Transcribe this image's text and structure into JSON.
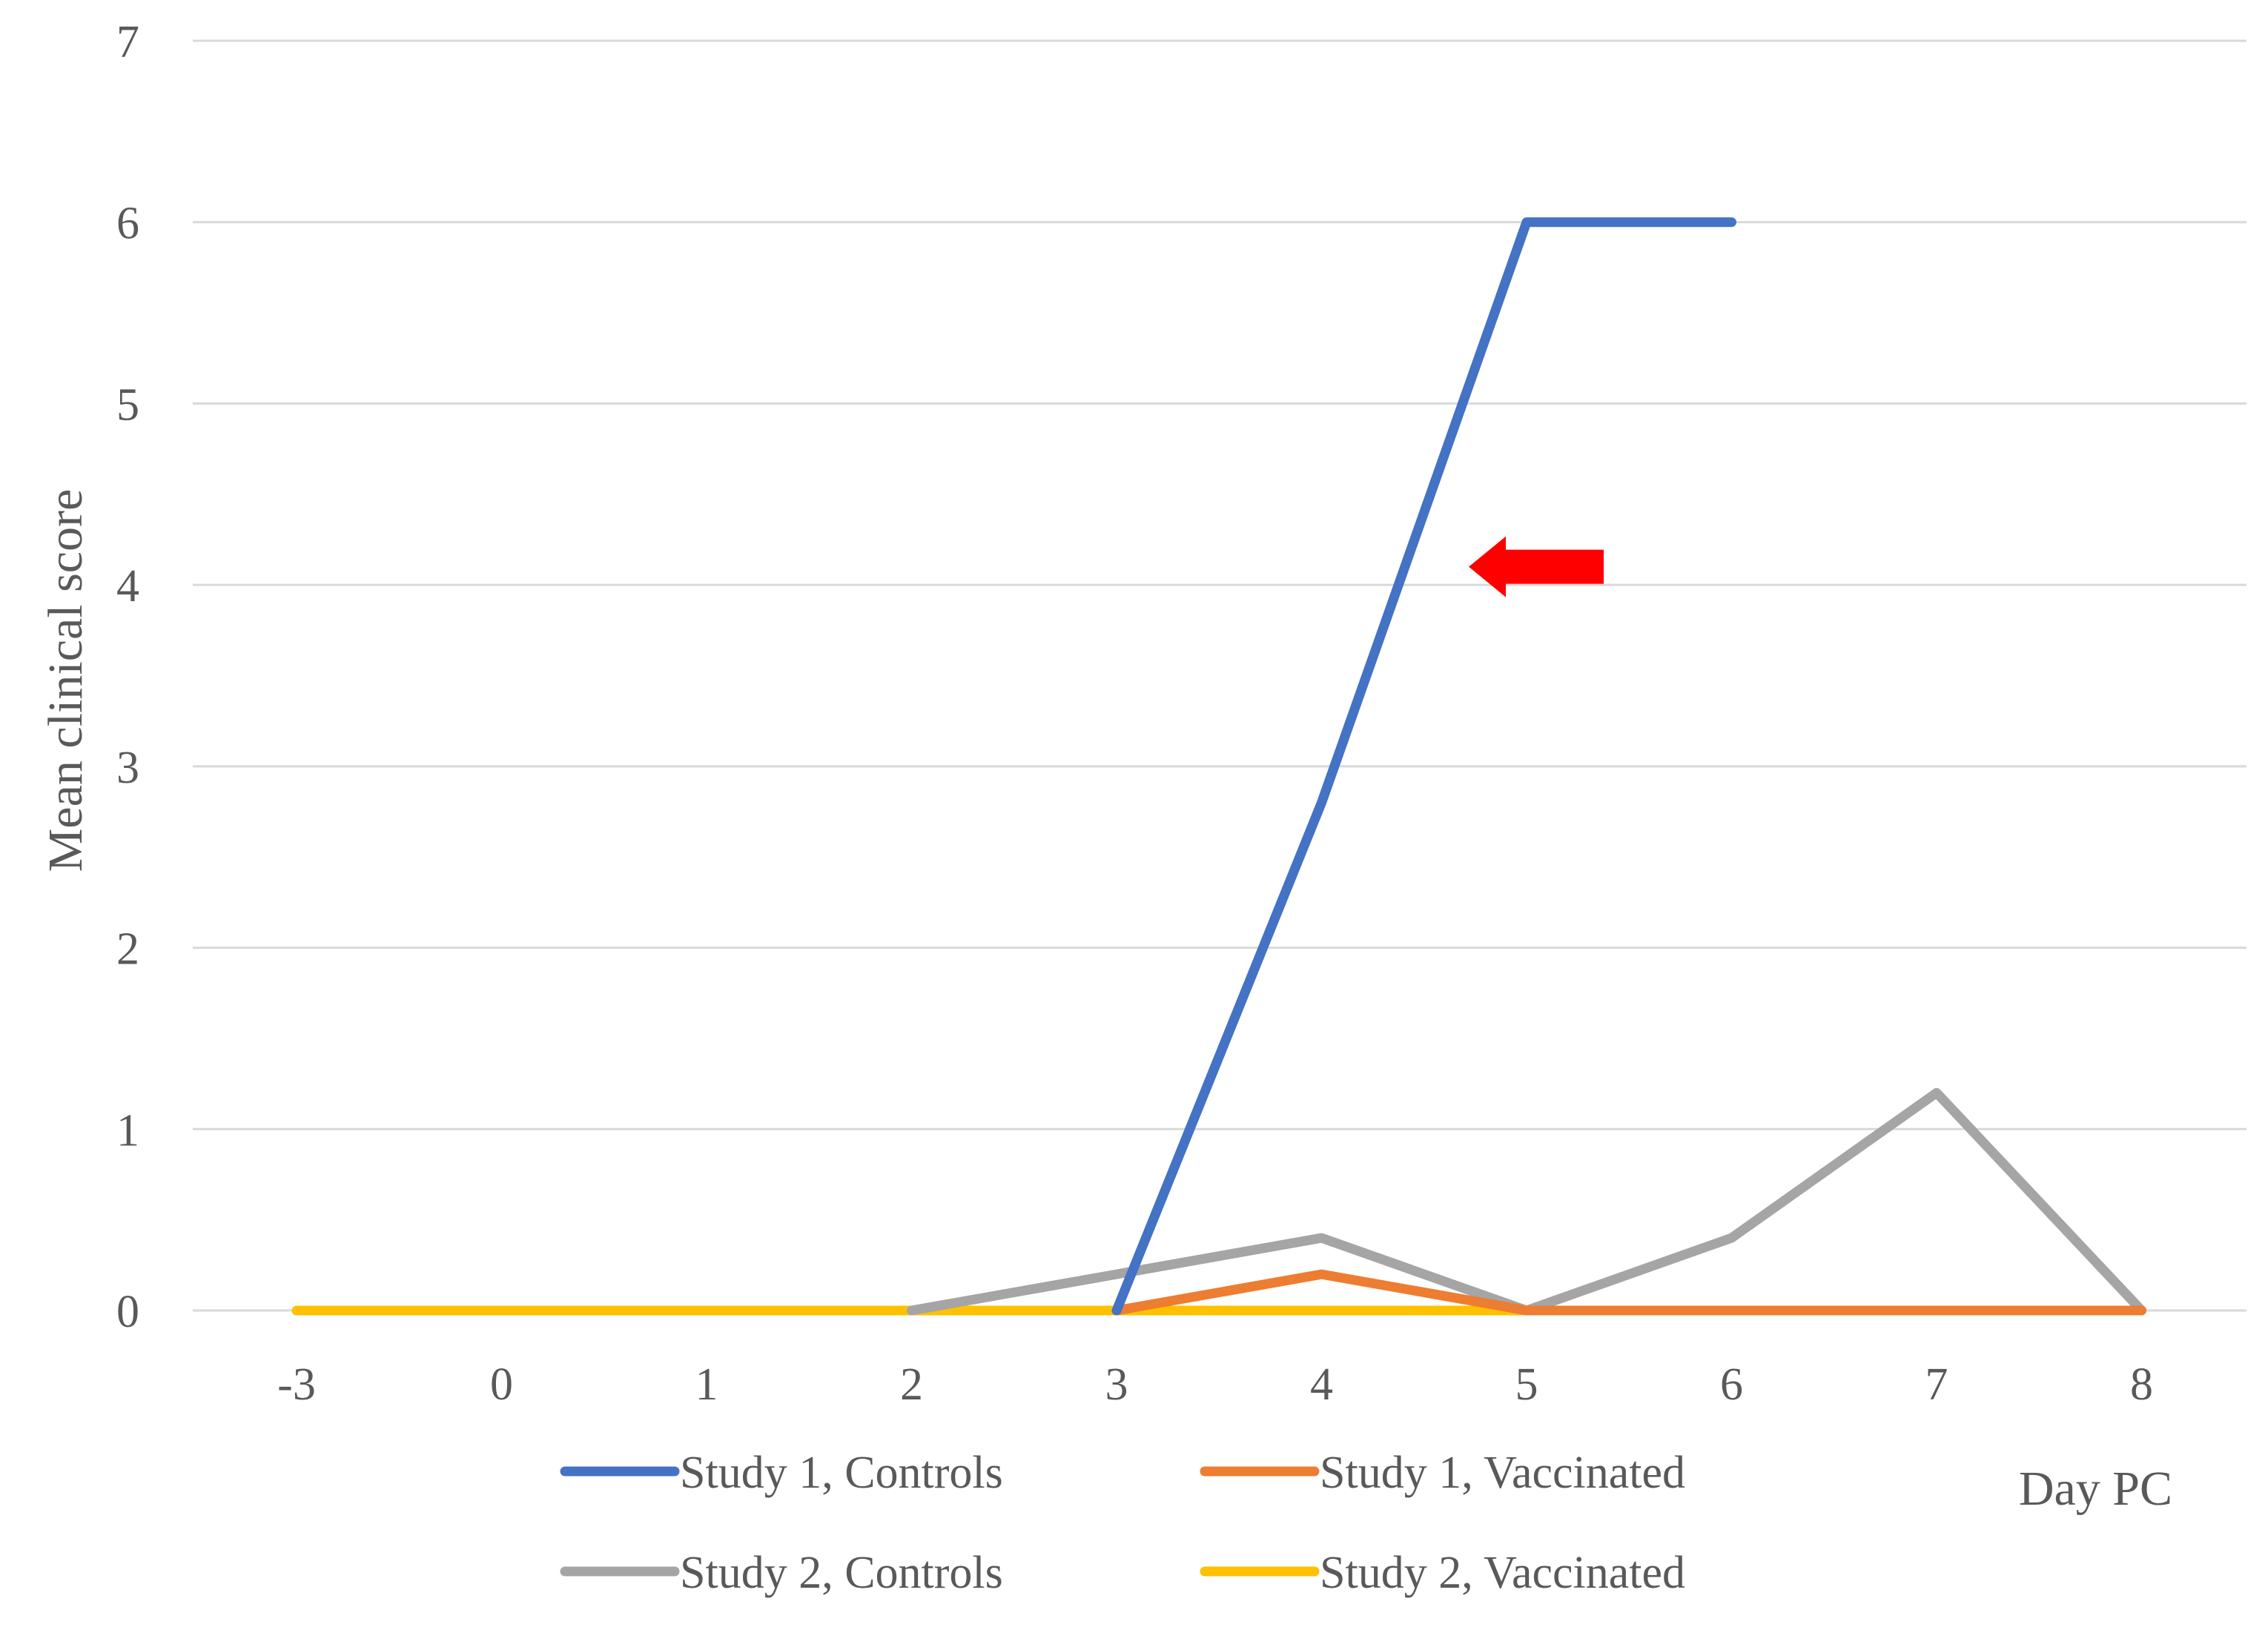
{
  "chart_data": {
    "type": "line",
    "title": "",
    "xlabel": "Day PC",
    "ylabel": "Mean clinical score",
    "categories": [
      "-3",
      "0",
      "1",
      "2",
      "3",
      "4",
      "5",
      "6",
      "7",
      "8"
    ],
    "ylim": [
      0,
      7
    ],
    "yticks": [
      "0",
      "1",
      "2",
      "3",
      "4",
      "5",
      "6",
      "7"
    ],
    "grid": true,
    "legend_position": "bottom",
    "series": [
      {
        "name": "Study 1, Controls",
        "color": "#4472C4",
        "values": [
          null,
          null,
          null,
          null,
          0,
          2.8,
          6,
          6,
          null,
          null
        ]
      },
      {
        "name": "Study 1, Vaccinated",
        "color": "#ED7D31",
        "values": [
          null,
          null,
          null,
          null,
          0,
          0.2,
          0,
          0,
          0,
          0
        ]
      },
      {
        "name": "Study 2, Controls",
        "color": "#A5A5A5",
        "values": [
          null,
          null,
          null,
          0,
          0.2,
          0.4,
          0,
          0.4,
          1.2,
          0
        ]
      },
      {
        "name": "Study 2, Vaccinated",
        "color": "#FFC000",
        "values": [
          0,
          0,
          0,
          0,
          0,
          0,
          0,
          0,
          0,
          0
        ]
      }
    ],
    "annotations": [
      {
        "kind": "arrow",
        "direction": "left",
        "color": "#FF0000",
        "at_category": "5",
        "at_value": 4.1
      }
    ]
  }
}
